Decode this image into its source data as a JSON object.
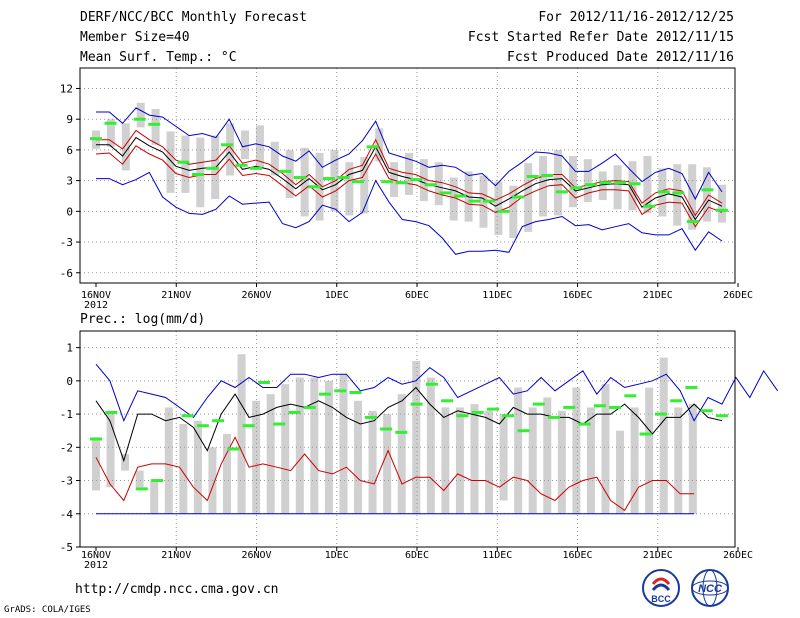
{
  "header": {
    "title": "DERF/NCC/BCC Monthly Forecast",
    "member_size": "Member Size=40",
    "variable": "Mean Surf. Temp.: °C",
    "period": "For 2012/11/16-2012/12/25",
    "fcst_started": "Fcst Started Refer Date 2012/11/15",
    "fcst_produced": "Fcst Produced Date 2012/11/16"
  },
  "footer": {
    "url": "http://cmdp.ncc.cma.gov.cn",
    "grads": "GrADS: COLA/IGES",
    "logo_left_text": "BCC",
    "logo_right_text": "NCC"
  },
  "colors": {
    "max_min": "#0000cc",
    "mean": "#000000",
    "percentile": "#cc0000",
    "obs": "#33ee33",
    "bar": "#d0d0d0",
    "grid": "#999999"
  },
  "chart_data": [
    {
      "type": "line",
      "name": "temperature",
      "title": "Mean Surf. Temp.: °C",
      "ylim": [
        -7,
        14
      ],
      "yticks": [
        12,
        9,
        6,
        3,
        0,
        -3,
        -6
      ],
      "x_tick_labels": [
        "16NOV",
        "21NOV",
        "26NOV",
        "1DEC",
        "6DEC",
        "11DEC",
        "16DEC",
        "21DEC",
        "26DEC"
      ],
      "x_tick_sub": "2012",
      "days": 40,
      "series": [
        {
          "name": "max",
          "values": [
            9.7,
            9.7,
            8.6,
            10.1,
            9.4,
            9.2,
            8.3,
            7.4,
            7.6,
            7.2,
            9.0,
            6.3,
            6.6,
            6.3,
            5.4,
            4.9,
            5.9,
            4.3,
            5.0,
            5.6,
            6.9,
            8.8,
            5.7,
            5.3,
            4.9,
            4.3,
            4.5,
            4.3,
            3.5,
            3.7,
            2.5,
            3.9,
            4.8,
            5.8,
            5.7,
            5.4,
            3.9,
            3.9,
            4.7,
            5.6,
            4.2,
            2.9,
            3.8,
            4.2,
            3.7,
            1.2,
            3.8,
            1.9
          ]
        },
        {
          "name": "p75",
          "values": [
            7.0,
            7.0,
            6.1,
            7.9,
            7.0,
            6.3,
            5.0,
            4.6,
            4.8,
            5.0,
            6.4,
            4.7,
            5.0,
            4.6,
            3.7,
            2.6,
            3.6,
            2.4,
            3.0,
            4.1,
            4.5,
            7.0,
            4.2,
            3.8,
            3.6,
            3.0,
            2.8,
            2.4,
            1.8,
            1.7,
            1.1,
            1.7,
            2.5,
            3.2,
            3.6,
            3.6,
            2.3,
            2.6,
            2.9,
            3.0,
            2.9,
            0.8,
            1.8,
            2.2,
            2.0,
            -0.4,
            1.6,
            0.8
          ]
        },
        {
          "name": "mean",
          "values": [
            6.5,
            6.5,
            5.4,
            7.2,
            6.4,
            5.8,
            4.4,
            4.0,
            4.2,
            4.3,
            5.8,
            4.1,
            4.4,
            4.1,
            3.2,
            2.2,
            3.2,
            2.1,
            2.6,
            3.6,
            4.0,
            6.3,
            3.8,
            3.4,
            3.1,
            2.6,
            2.3,
            2.0,
            1.4,
            1.3,
            0.5,
            1.2,
            2.0,
            2.7,
            3.1,
            3.2,
            2.0,
            2.3,
            2.6,
            2.7,
            2.6,
            0.4,
            1.3,
            1.7,
            1.4,
            -0.8,
            1.1,
            0.5
          ]
        },
        {
          "name": "p25",
          "values": [
            5.6,
            5.7,
            4.6,
            6.4,
            5.6,
            5.0,
            3.7,
            3.3,
            3.6,
            3.6,
            5.1,
            3.5,
            3.7,
            3.5,
            2.5,
            1.5,
            2.5,
            1.4,
            2.0,
            3.0,
            3.3,
            5.6,
            3.2,
            2.8,
            2.6,
            2.0,
            1.6,
            1.3,
            0.7,
            0.6,
            -0.1,
            0.4,
            1.4,
            2.0,
            2.5,
            2.6,
            1.3,
            1.8,
            2.1,
            2.1,
            2.0,
            -0.3,
            0.6,
            0.9,
            0.8,
            -1.5,
            0.4,
            -0.1
          ]
        },
        {
          "name": "min",
          "values": [
            3.2,
            3.2,
            2.6,
            3.1,
            3.8,
            1.4,
            0.4,
            -0.2,
            -0.3,
            0.2,
            1.5,
            0.7,
            0.8,
            0.9,
            -1.2,
            -1.6,
            -1.0,
            0.6,
            0.2,
            -1.0,
            -0.1,
            3.0,
            0.9,
            -0.8,
            -1.0,
            -1.4,
            -2.6,
            -4.2,
            -3.9,
            -3.9,
            -3.8,
            -4.0,
            -1.5,
            -1.0,
            -0.8,
            -0.5,
            -1.4,
            -1.3,
            -1.8,
            -1.5,
            -1.2,
            -2.1,
            -2.3,
            -2.3,
            -1.7,
            -3.8,
            -2.0,
            -2.9
          ]
        },
        {
          "name": "obs",
          "values": [
            7.1,
            8.6,
            null,
            9.0,
            8.5,
            null,
            4.8,
            3.6,
            4.2,
            6.5,
            4.5,
            4.2,
            null,
            3.9,
            3.3,
            2.4,
            3.2,
            3.3,
            2.9,
            6.3,
            2.9,
            2.8,
            3.1,
            2.6,
            1.8,
            1.5,
            1.0,
            1.0,
            0.0,
            1.4,
            3.4,
            3.5,
            1.9,
            2.3,
            2.6,
            2.8,
            2.8,
            2.7,
            0.5,
            1.9,
            1.8,
            -1.0,
            2.1,
            0.1
          ]
        },
        {
          "name": "spread_low",
          "values": [
            6.1,
            6.3,
            4.0,
            8.2,
            6.5,
            1.8,
            1.8,
            0.4,
            1.2,
            3.5,
            5.1,
            4.3,
            3.5,
            1.3,
            -0.5,
            -0.9,
            0.0,
            -0.4,
            -0.2,
            4.9,
            1.4,
            1.6,
            1.0,
            0.6,
            -0.9,
            -1.0,
            -1.6,
            -2.3,
            -2.6,
            -2.0,
            -0.5,
            -0.4,
            0.4,
            0.9,
            1.1,
            0.2,
            0.1,
            -0.2,
            -0.5,
            -1.4,
            -1.8,
            -1.0,
            -1.1
          ]
        },
        {
          "name": "spread_high",
          "values": [
            7.9,
            9.0,
            8.6,
            10.6,
            10.0,
            7.8,
            7.4,
            7.2,
            7.4,
            8.6,
            7.9,
            8.4,
            6.8,
            6.0,
            6.2,
            5.7,
            6.0,
            4.8,
            5.3,
            8.1,
            4.8,
            5.7,
            5.1,
            4.8,
            3.3,
            3.9,
            3.5,
            2.9,
            2.5,
            4.7,
            5.4,
            6.0,
            5.4,
            5.1,
            3.9,
            4.5,
            4.9,
            5.4,
            4.2,
            4.6,
            4.6,
            4.3,
            2.6
          ]
        }
      ]
    },
    {
      "type": "line",
      "name": "precipitation",
      "title": "Prec.: log(mm/d)",
      "ylim": [
        -5,
        1.5
      ],
      "yticks": [
        1,
        0,
        -1,
        -2,
        -3,
        -4,
        -5
      ],
      "x_tick_labels": [
        "16NOV",
        "21NOV",
        "26NOV",
        "1DEC",
        "6DEC",
        "11DEC",
        "16DEC",
        "21DEC",
        "26DEC"
      ],
      "x_tick_sub": "2012",
      "days": 40,
      "series": [
        {
          "name": "max",
          "values": [
            0.5,
            0.0,
            -1.2,
            -0.3,
            -0.4,
            -0.5,
            -0.8,
            -1.1,
            -0.5,
            0.0,
            -0.2,
            0.1,
            -0.2,
            -0.2,
            0.2,
            0.2,
            0.1,
            0.2,
            0.2,
            -0.3,
            -0.2,
            0.1,
            -0.1,
            0.0,
            0.4,
            0.1,
            -0.5,
            -0.3,
            -0.1,
            0.1,
            -0.4,
            -0.3,
            0.1,
            -0.3,
            0.0,
            0.3,
            -0.4,
            0.1,
            -0.2,
            -0.1,
            0.0,
            0.2,
            -0.3,
            -1.2,
            -0.5,
            -0.7,
            0.1,
            -0.5,
            0.3,
            -0.3
          ]
        },
        {
          "name": "mean",
          "values": [
            -0.6,
            -1.2,
            -2.4,
            -1.0,
            -1.0,
            -1.2,
            -1.1,
            -1.4,
            -2.1,
            -1.0,
            -0.4,
            -1.1,
            -1.0,
            -0.8,
            -0.7,
            -0.8,
            -0.6,
            -0.8,
            -1.1,
            -1.3,
            -1.2,
            -0.8,
            -0.6,
            -0.2,
            -0.7,
            -1.1,
            -0.9,
            -1.0,
            -1.1,
            -1.3,
            -0.8,
            -1.0,
            -1.0,
            -1.1,
            -1.1,
            -1.3,
            -1.0,
            -1.0,
            -0.7,
            -1.1,
            -1.6,
            -1.1,
            -1.1,
            -0.7,
            -1.1,
            -1.2
          ]
        },
        {
          "name": "p25",
          "values": [
            -2.3,
            -3.1,
            -3.6,
            -2.6,
            -2.5,
            -2.5,
            -2.6,
            -3.2,
            -3.6,
            -2.5,
            -1.7,
            -2.6,
            -2.5,
            -2.6,
            -2.7,
            -2.2,
            -2.7,
            -2.8,
            -2.6,
            -3.0,
            -3.1,
            -2.1,
            -3.1,
            -2.9,
            -2.9,
            -3.3,
            -2.8,
            -3.0,
            -3.0,
            -3.2,
            -2.9,
            -3.0,
            -3.4,
            -3.6,
            -3.2,
            -3.0,
            -2.9,
            -3.6,
            -3.9,
            -3.2,
            -3.0,
            -3.0,
            -3.4,
            -3.4
          ]
        },
        {
          "name": "min",
          "values": [
            -4.0,
            -4.0,
            -4.0,
            -4.0,
            -4.0,
            -4.0,
            -4.0,
            -4.0,
            -4.0,
            -4.0,
            -4.0,
            -4.0,
            -4.0,
            -4.0,
            -4.0,
            -4.0,
            -4.0,
            -4.0,
            -4.0,
            -4.0,
            -4.0,
            -4.0,
            -4.0,
            -4.0,
            -4.0,
            -4.0,
            -4.0,
            -4.0,
            -4.0,
            -4.0,
            -4.0,
            -4.0,
            -4.0,
            -4.0,
            -4.0,
            -4.0,
            -4.0,
            -4.0,
            -4.0,
            -4.0,
            -4.0,
            -4.0,
            -4.0,
            -4.0
          ]
        },
        {
          "name": "obs",
          "values": [
            -1.75,
            -0.95,
            null,
            -3.25,
            -3.0,
            null,
            -1.05,
            -1.35,
            -1.2,
            -2.05,
            -1.35,
            -0.05,
            -1.3,
            -0.95,
            -0.8,
            -0.4,
            -0.3,
            -0.35,
            -1.1,
            -1.45,
            -1.55,
            -0.7,
            -0.1,
            -0.6,
            -1.05,
            -0.95,
            -0.85,
            -1.05,
            -1.5,
            -0.7,
            -1.1,
            -0.8,
            -1.3,
            -0.75,
            -0.8,
            -0.45,
            -1.6,
            -1.0,
            -0.6,
            -0.2,
            -0.9,
            -1.05
          ]
        },
        {
          "name": "bars_low",
          "values": [
            -3.3,
            -3.2,
            -2.7,
            -3.2,
            -4.0,
            -4.0,
            -4.0,
            -4.0,
            -4.0,
            -4.0,
            -4.0,
            -4.0,
            -4.0,
            -4.0,
            -4.0,
            -4.0,
            -4.0,
            -4.0,
            -4.0,
            -4.0,
            -4.0,
            -4.0,
            -4.0,
            -4.0,
            -4.0,
            -4.0,
            -4.0,
            -4.0,
            -3.6,
            -4.0,
            -4.0,
            -4.0,
            -4.0,
            -4.0,
            -4.0,
            -4.0,
            -4.0,
            -4.0,
            -4.0,
            -4.0,
            -4.0,
            -4.0,
            -4.0,
            -4.0
          ]
        },
        {
          "name": "bars_high",
          "values": [
            -1.7,
            -0.9,
            -2.2,
            -2.7,
            -3.0,
            -0.8,
            -1.3,
            -1.2,
            -2.0,
            -1.6,
            0.8,
            -0.6,
            -0.4,
            -0.1,
            0.1,
            0.1,
            0.0,
            0.2,
            -0.6,
            -0.9,
            -1.0,
            -0.4,
            0.6,
            0.1,
            -0.8,
            -0.8,
            -0.7,
            -0.9,
            -1.0,
            -0.2,
            -0.8,
            -0.5,
            -0.9,
            -0.2,
            -0.8,
            -0.1,
            -1.5,
            -0.8,
            -0.2,
            0.7,
            -0.8,
            -0.7
          ]
        }
      ]
    }
  ]
}
